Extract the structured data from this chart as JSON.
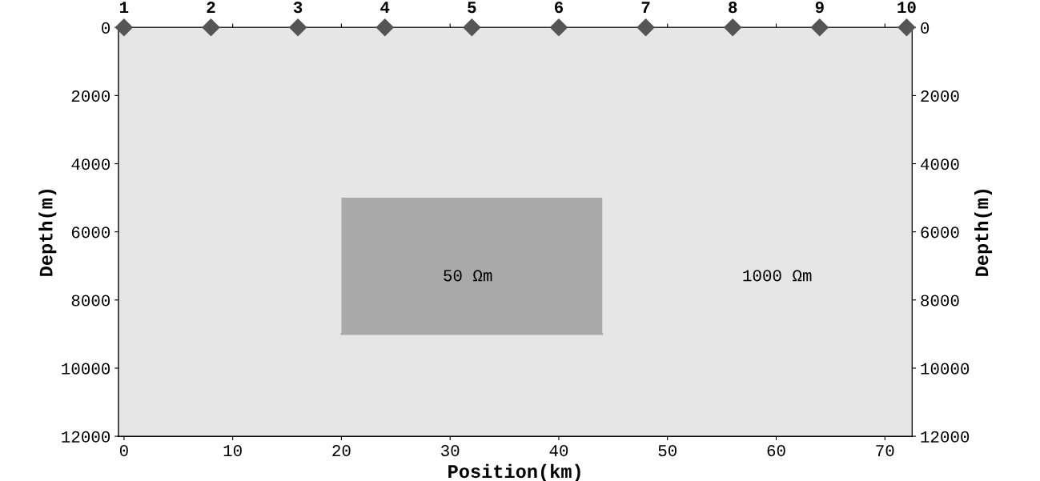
{
  "chart_data": {
    "type": "scatter",
    "xlabel": "Position(km)",
    "ylabel": "Depth(m)",
    "y2label": "Depth(m)",
    "xlim": [
      -0.5,
      72.5
    ],
    "xticks": [
      0,
      10,
      20,
      30,
      40,
      50,
      60,
      70
    ],
    "ylim": [
      12000,
      0
    ],
    "yticks": [
      0,
      2000,
      4000,
      6000,
      8000,
      10000,
      12000
    ],
    "y2lim": [
      12000,
      0
    ],
    "y2ticks": [
      0,
      2000,
      4000,
      6000,
      8000,
      10000,
      12000
    ],
    "grid": false,
    "marker": "diamond",
    "series": [
      {
        "type": "line",
        "color": "#a9a9a9",
        "marker": "none",
        "x": [
          20,
          44
        ],
        "values": [
          9000,
          9000
        ],
        "lower": [
          5000,
          5000
        ],
        "upper": [
          9000,
          9000
        ]
      },
      {
        "type": "scatter",
        "color": "#555555",
        "x": [
          0,
          8,
          16,
          24,
          32,
          40,
          48,
          56,
          64,
          72
        ],
        "values": [
          0,
          0,
          0,
          0,
          0,
          0,
          0,
          0,
          0,
          0
        ]
      }
    ],
    "annotations": [
      "50 Ωm",
      "1000 Ωm",
      {
        "text": "1",
        "x": 0,
        "y": 0
      },
      {
        "text": "2",
        "x": 8,
        "y": 0
      },
      {
        "text": "3",
        "x": 16,
        "y": 0
      },
      {
        "text": "4",
        "x": 24,
        "y": 0
      },
      {
        "text": "5",
        "x": 32,
        "y": 0
      },
      {
        "text": "6",
        "x": 40,
        "y": 0
      },
      {
        "text": "7",
        "x": 48,
        "y": 0
      },
      {
        "text": "8",
        "x": 56,
        "y": 0
      },
      {
        "text": "9",
        "x": 64,
        "y": 0
      },
      {
        "text": "10",
        "x": 72,
        "y": 0
      }
    ]
  }
}
